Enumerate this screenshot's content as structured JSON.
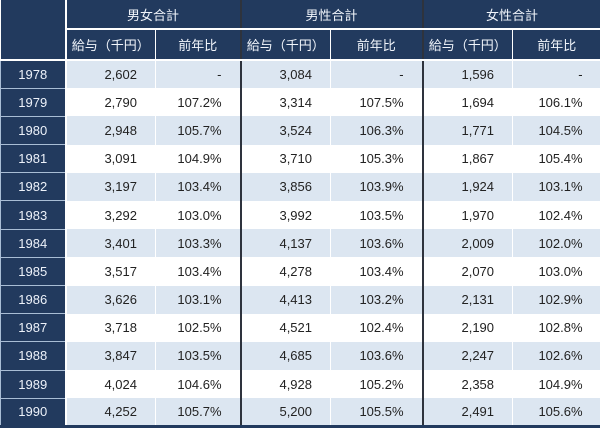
{
  "colors": {
    "header_navy": "#223A5E",
    "stripe_light_blue": "#DCE6F1",
    "stripe_white": "#FFFFFF",
    "group_separator_dark": "#2E333D",
    "year_cell_border": "#A9BDD5",
    "header_text": "#F1F5FB",
    "data_text": "#222222"
  },
  "chart_data": {
    "type": "table",
    "title": "",
    "column_groups": [
      "男女合計",
      "男性合計",
      "女性合計"
    ],
    "sub_columns": [
      "給与（千円）",
      "前年比"
    ],
    "row_header_label": "",
    "rows": [
      {
        "year": "1978",
        "cells": [
          "2,602",
          "-",
          "3,084",
          "-",
          "1,596",
          "-"
        ]
      },
      {
        "year": "1979",
        "cells": [
          "2,790",
          "107.2%",
          "3,314",
          "107.5%",
          "1,694",
          "106.1%"
        ]
      },
      {
        "year": "1980",
        "cells": [
          "2,948",
          "105.7%",
          "3,524",
          "106.3%",
          "1,771",
          "104.5%"
        ]
      },
      {
        "year": "1981",
        "cells": [
          "3,091",
          "104.9%",
          "3,710",
          "105.3%",
          "1,867",
          "105.4%"
        ]
      },
      {
        "year": "1982",
        "cells": [
          "3,197",
          "103.4%",
          "3,856",
          "103.9%",
          "1,924",
          "103.1%"
        ]
      },
      {
        "year": "1983",
        "cells": [
          "3,292",
          "103.0%",
          "3,992",
          "103.5%",
          "1,970",
          "102.4%"
        ]
      },
      {
        "year": "1984",
        "cells": [
          "3,401",
          "103.3%",
          "4,137",
          "103.6%",
          "2,009",
          "102.0%"
        ]
      },
      {
        "year": "1985",
        "cells": [
          "3,517",
          "103.4%",
          "4,278",
          "103.4%",
          "2,070",
          "103.0%"
        ]
      },
      {
        "year": "1986",
        "cells": [
          "3,626",
          "103.1%",
          "4,413",
          "103.2%",
          "2,131",
          "102.9%"
        ]
      },
      {
        "year": "1987",
        "cells": [
          "3,718",
          "102.5%",
          "4,521",
          "102.4%",
          "2,190",
          "102.8%"
        ]
      },
      {
        "year": "1988",
        "cells": [
          "3,847",
          "103.5%",
          "4,685",
          "103.6%",
          "2,247",
          "102.6%"
        ]
      },
      {
        "year": "1989",
        "cells": [
          "4,024",
          "104.6%",
          "4,928",
          "105.2%",
          "2,358",
          "104.9%"
        ]
      },
      {
        "year": "1990",
        "cells": [
          "4,252",
          "105.7%",
          "5,200",
          "105.5%",
          "2,491",
          "105.6%"
        ]
      }
    ]
  }
}
